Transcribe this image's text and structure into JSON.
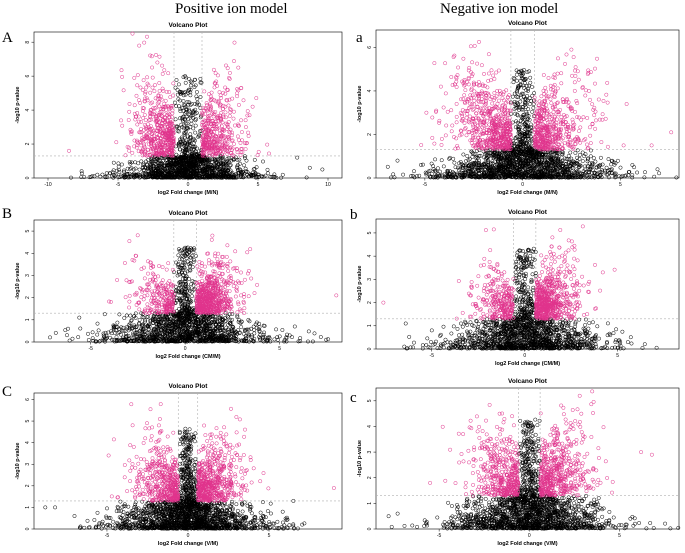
{
  "column_titles": {
    "left": "Positive ion model",
    "right": "Negative ion model"
  },
  "panel_letters": {
    "A": "A",
    "a": "a",
    "B": "B",
    "b": "b",
    "C": "C",
    "c": "c"
  },
  "colors": {
    "significant": "#e0338c",
    "nonsignificant": "#000000",
    "threshold_line": "#b0b0b0"
  },
  "chart_data": [
    {
      "id": "A",
      "type": "scatter",
      "title": "Volcano Plot",
      "xlabel": "log2 Fold change (M/N)",
      "ylabel": "-log10 p-value",
      "xlim": [
        -11,
        11
      ],
      "ylim": [
        0,
        8.6
      ],
      "xticks": [
        -10,
        -5,
        0,
        5,
        10
      ],
      "yticks": [
        0,
        2,
        4,
        6,
        8
      ],
      "fc_threshold": 1,
      "p_threshold": 1.3,
      "seed": 11,
      "n_nonsig": 1300,
      "n_sig": 900,
      "sig_spread_x": 1.5,
      "sig_spread_y": 1.5,
      "right_bias": 0.45,
      "y_max": 8.6,
      "outliers": [
        [
          -8.5,
          1.6
        ],
        [
          9.6,
          0.5
        ],
        [
          8.7,
          0.6
        ],
        [
          7.8,
          1.2
        ],
        [
          -7.6,
          0.4
        ],
        [
          -5.3,
          0.9
        ]
      ]
    },
    {
      "id": "a",
      "type": "scatter",
      "title": "Volcano Plot",
      "xlabel": "log2 Fold change (M/N)",
      "ylabel": "-log10 p-value",
      "xlim": [
        -7.5,
        8
      ],
      "ylim": [
        0,
        6.8
      ],
      "xticks": [
        -5,
        0,
        5
      ],
      "yticks": [
        0,
        2,
        4,
        6
      ],
      "fc_threshold": 0.6,
      "p_threshold": 1.3,
      "seed": 23,
      "n_nonsig": 1500,
      "n_sig": 1100,
      "sig_spread_x": 1.4,
      "sig_spread_y": 1.3,
      "right_bias": 0.45,
      "y_max": 6.7,
      "outliers": [
        [
          7.6,
          2.1
        ],
        [
          6.6,
          1.5
        ],
        [
          -6.4,
          0.8
        ],
        [
          6.9,
          0.4
        ],
        [
          -5.2,
          0.6
        ]
      ]
    },
    {
      "id": "B",
      "type": "scatter",
      "title": "Volcano Plot",
      "xlabel": "log2 Fold change (CM/M)",
      "ylabel": "-log10 p-value",
      "xlim": [
        -8,
        8.3
      ],
      "ylim": [
        0,
        5.5
      ],
      "xticks": [
        -5,
        0,
        5
      ],
      "yticks": [
        0,
        1,
        2,
        3,
        4,
        5
      ],
      "fc_threshold": 0.6,
      "p_threshold": 1.3,
      "seed": 37,
      "n_nonsig": 1300,
      "n_sig": 850,
      "sig_spread_x": 1.1,
      "sig_spread_y": 1.0,
      "right_bias": 0.72,
      "y_max": 5.4,
      "outliers": [
        [
          8.0,
          2.1
        ],
        [
          -6.2,
          0.6
        ],
        [
          5.8,
          0.7
        ],
        [
          -5.6,
          1.1
        ]
      ]
    },
    {
      "id": "b",
      "type": "scatter",
      "title": "Volcano Plot",
      "xlabel": "log2 Fold change (CM/M)",
      "ylabel": "-log10 p-value",
      "xlim": [
        -8,
        8.3
      ],
      "ylim": [
        0,
        5.6
      ],
      "xticks": [
        -5,
        0,
        5
      ],
      "yticks": [
        0,
        1,
        2,
        3,
        4,
        5
      ],
      "fc_threshold": 0.6,
      "p_threshold": 1.3,
      "seed": 41,
      "n_nonsig": 1300,
      "n_sig": 900,
      "sig_spread_x": 1.1,
      "sig_spread_y": 1.0,
      "right_bias": 0.7,
      "y_max": 5.5,
      "outliers": [
        [
          -7.6,
          2.0
        ],
        [
          4.2,
          3.3
        ],
        [
          -6.4,
          1.1
        ],
        [
          4.6,
          0.6
        ],
        [
          -5.0,
          0.8
        ]
      ]
    },
    {
      "id": "C",
      "type": "scatter",
      "title": "Volcano Plot",
      "xlabel": "log2 Fold change (V/M)",
      "ylabel": "-log10 p-value",
      "xlim": [
        -9.5,
        9.5
      ],
      "ylim": [
        0,
        6.3
      ],
      "xticks": [
        -5,
        0,
        5
      ],
      "yticks": [
        0,
        1,
        2,
        3,
        4,
        5,
        6
      ],
      "fc_threshold": 0.6,
      "p_threshold": 1.3,
      "seed": 53,
      "n_nonsig": 1600,
      "n_sig": 1000,
      "sig_spread_x": 1.3,
      "sig_spread_y": 1.1,
      "right_bias": 0.55,
      "y_max": 6.1,
      "outliers": [
        [
          9.0,
          1.9
        ],
        [
          -8.8,
          1.0
        ],
        [
          -8.2,
          1.0
        ],
        [
          6.5,
          1.3
        ],
        [
          -7.0,
          0.6
        ]
      ]
    },
    {
      "id": "c",
      "type": "scatter",
      "title": "Volcano Plot",
      "xlabel": "log2 Fold change (V/M)",
      "ylabel": "-log10 p-value",
      "xlim": [
        -8.5,
        8.3
      ],
      "ylim": [
        0,
        5.5
      ],
      "xticks": [
        -5,
        0,
        5
      ],
      "yticks": [
        0,
        1,
        2,
        3,
        4,
        5
      ],
      "fc_threshold": 0.6,
      "p_threshold": 1.3,
      "seed": 67,
      "n_nonsig": 1500,
      "n_sig": 950,
      "sig_spread_x": 1.3,
      "sig_spread_y": 1.1,
      "right_bias": 0.55,
      "y_max": 5.4,
      "outliers": [
        [
          -7.8,
          0.5
        ],
        [
          -7.3,
          0.6
        ],
        [
          6.2,
          3.0
        ],
        [
          6.8,
          2.9
        ],
        [
          -5.5,
          1.8
        ]
      ]
    }
  ]
}
